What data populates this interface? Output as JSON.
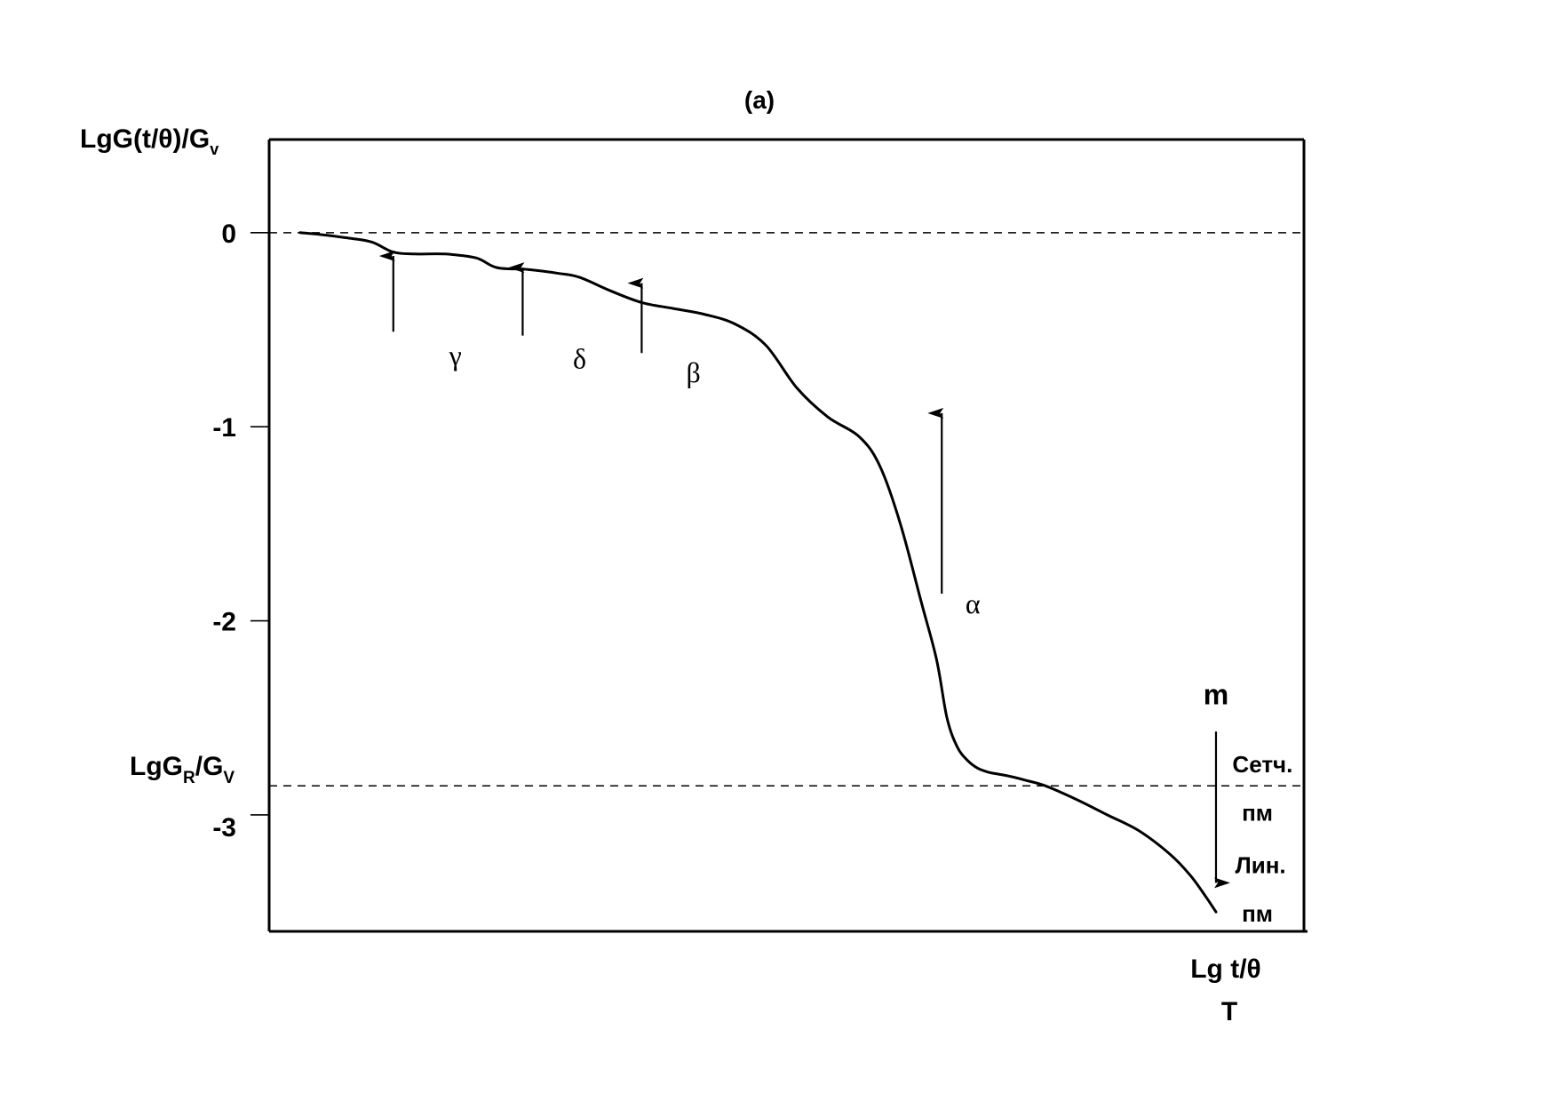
{
  "chart_data": {
    "type": "line",
    "title": "(a)",
    "ylabel": {
      "main": "LgG(t/θ)/G",
      "sub": "v"
    },
    "xlabel": {
      "line1": "Lg  t/θ",
      "line2": "T"
    },
    "ylim": [
      -3.6,
      0.48
    ],
    "xlim": [
      0,
      1
    ],
    "grid": false,
    "yticks": [
      {
        "value": 0,
        "label": "0"
      },
      {
        "value": -1,
        "label": "-1"
      },
      {
        "value": -2,
        "label": "-2"
      },
      {
        "value": -3,
        "label": "-3"
      }
    ],
    "reference_lines": [
      {
        "y": 0,
        "style": "dashed"
      },
      {
        "y": -2.85,
        "style": "dashed",
        "label_main": "LgG",
        "label_sub1": "R",
        "label_mid": "/G",
        "label_sub2": "V"
      }
    ],
    "series": [
      {
        "x": [
          0.03,
          0.05,
          0.08,
          0.1,
          0.12,
          0.14,
          0.17,
          0.2,
          0.22,
          0.25,
          0.28,
          0.3,
          0.33,
          0.36,
          0.39,
          0.42,
          0.45,
          0.48,
          0.51,
          0.54,
          0.57,
          0.59,
          0.61,
          0.63,
          0.645,
          0.655,
          0.665,
          0.675,
          0.685,
          0.695,
          0.705,
          0.715,
          0.73,
          0.75,
          0.78,
          0.81,
          0.84,
          0.87,
          0.89,
          0.905,
          0.915
        ],
        "y": [
          0.0,
          -0.01,
          -0.03,
          -0.05,
          -0.1,
          -0.11,
          -0.11,
          -0.13,
          -0.18,
          -0.19,
          -0.21,
          -0.23,
          -0.3,
          -0.36,
          -0.39,
          -0.42,
          -0.47,
          -0.58,
          -0.8,
          -0.95,
          -1.05,
          -1.2,
          -1.5,
          -1.9,
          -2.2,
          -2.5,
          -2.65,
          -2.72,
          -2.76,
          -2.78,
          -2.79,
          -2.8,
          -2.82,
          -2.85,
          -2.92,
          -3.0,
          -3.08,
          -3.2,
          -3.31,
          -3.42,
          -3.5
        ]
      }
    ],
    "arrows": [
      {
        "x": 0.12,
        "y_from": -0.51,
        "y_to": -0.12,
        "direction": "up"
      },
      {
        "x": 0.245,
        "y_from": -0.53,
        "y_to": -0.18,
        "direction": "up"
      },
      {
        "x": 0.36,
        "y_from": -0.62,
        "y_to": -0.26,
        "direction": "up"
      },
      {
        "x": 0.65,
        "y_from": -1.86,
        "y_to": -0.93,
        "direction": "up"
      },
      {
        "x": 0.915,
        "y_from": -2.57,
        "y_to": -3.35,
        "direction": "down"
      }
    ],
    "annotations": [
      {
        "text": "γ",
        "x": 0.18,
        "y": -0.68,
        "style": "greek"
      },
      {
        "text": "δ",
        "x": 0.3,
        "y": -0.7,
        "style": "greek"
      },
      {
        "text": "β",
        "x": 0.41,
        "y": -0.77,
        "style": "greek"
      },
      {
        "text": "α",
        "x": 0.68,
        "y": -1.96,
        "style": "greek"
      },
      {
        "text": "m",
        "x": 0.915,
        "y": -2.43,
        "style": "bold-large"
      },
      {
        "text": "Сетч.",
        "x": 0.96,
        "y": -2.78,
        "style": "bold"
      },
      {
        "text": "пм",
        "x": 0.955,
        "y": -3.03,
        "style": "bold"
      },
      {
        "text": "Лин.",
        "x": 0.958,
        "y": -3.3,
        "style": "bold"
      },
      {
        "text": "пм",
        "x": 0.955,
        "y": -3.55,
        "style": "bold"
      }
    ]
  }
}
